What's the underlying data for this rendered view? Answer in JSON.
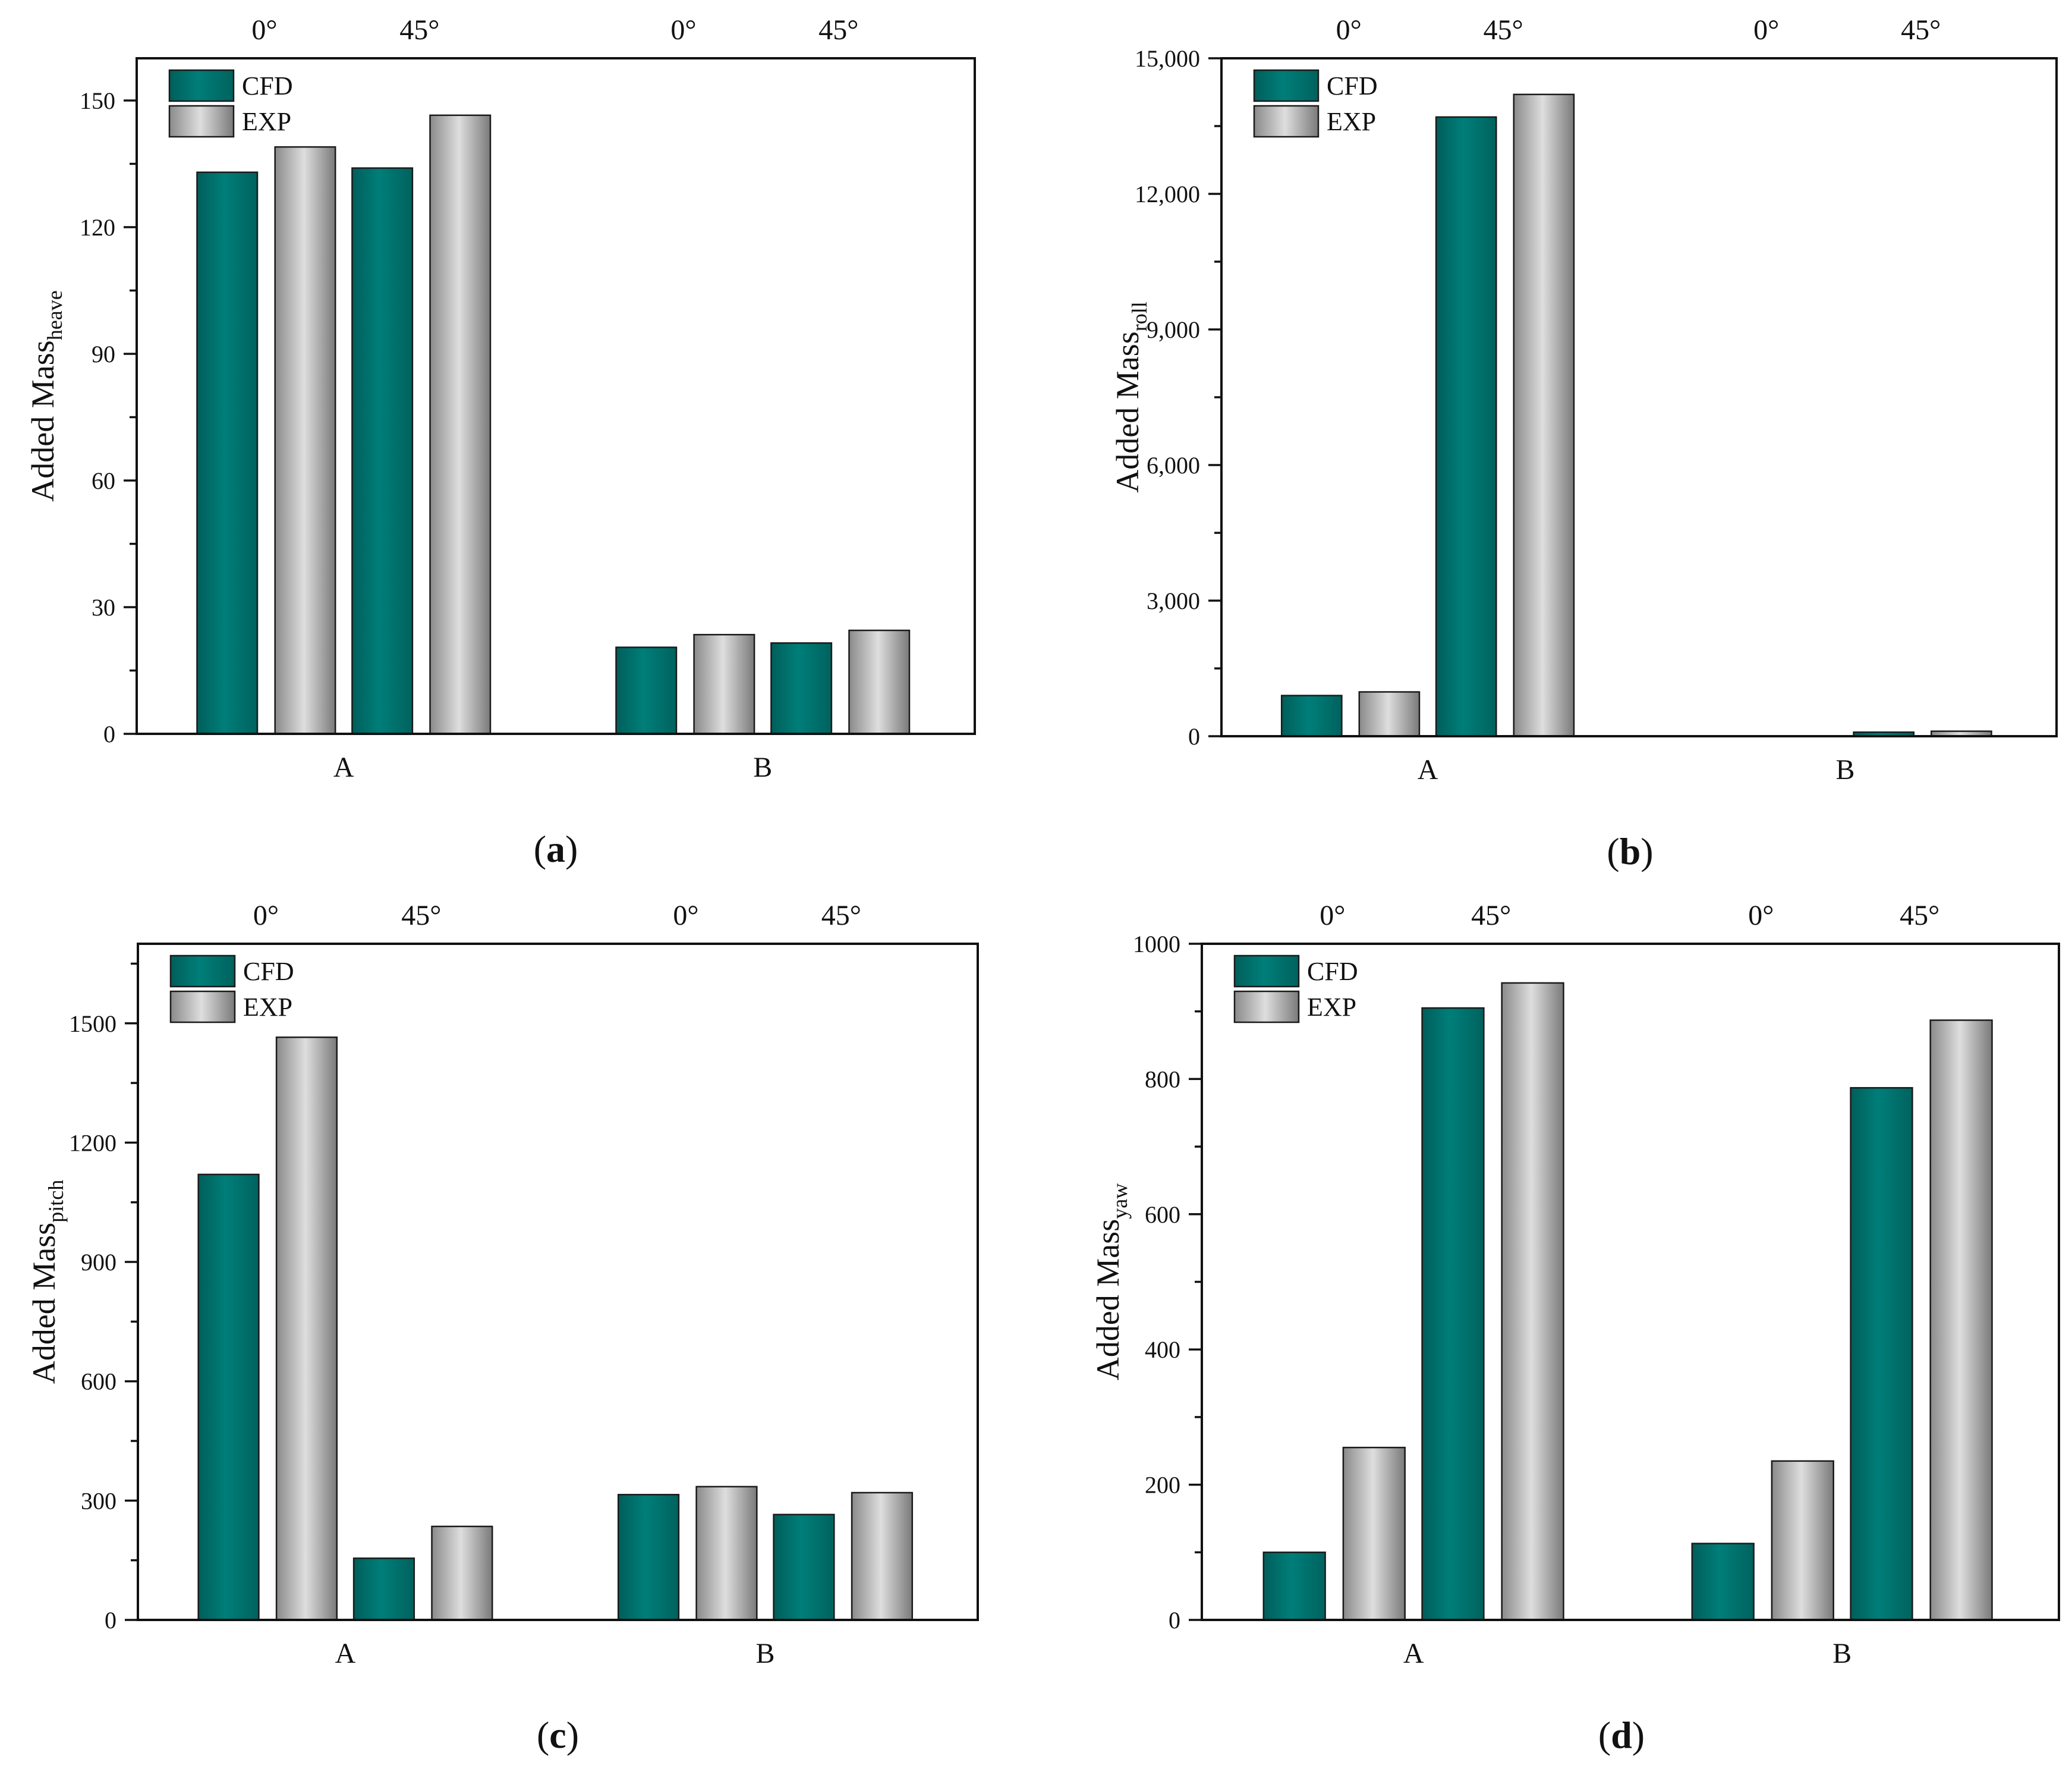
{
  "colors": {
    "cfd_fill": "#007b76",
    "exp_mid": "#d6d6d6",
    "exp_edge": "#858585",
    "frame": "#111111"
  },
  "chart_data": [
    {
      "type": "bar",
      "panel_label": "(a)",
      "ylabel_main": "Added Mass",
      "ylabel_sub": "heave",
      "ylim": [
        0,
        160
      ],
      "yticks": [
        0,
        30,
        60,
        90,
        120,
        150
      ],
      "ytick_labels": [
        "0",
        "30",
        "60",
        "90",
        "120",
        "150"
      ],
      "categories": [
        "A",
        "B"
      ],
      "angles": [
        "0°",
        "45°"
      ],
      "legend": [
        "CFD",
        "EXP"
      ],
      "series": [
        {
          "name": "CFD",
          "values": [
            [
              133,
              134
            ],
            [
              20.5,
              21.5
            ]
          ]
        },
        {
          "name": "EXP",
          "values": [
            [
              139,
              146.5
            ],
            [
              23.5,
              24.5
            ]
          ]
        }
      ]
    },
    {
      "type": "bar",
      "panel_label": "(b)",
      "ylabel_main": "Added Mass",
      "ylabel_sub": "roll",
      "ylim": [
        0,
        15000
      ],
      "yticks": [
        0,
        3000,
        6000,
        9000,
        12000,
        15000
      ],
      "ytick_labels": [
        "0",
        "3,000",
        "6,000",
        "9,000",
        "12,000",
        "15,000"
      ],
      "categories": [
        "A",
        "B"
      ],
      "angles": [
        "0°",
        "45°"
      ],
      "legend": [
        "CFD",
        "EXP"
      ],
      "series": [
        {
          "name": "CFD",
          "values": [
            [
              900,
              13700
            ],
            [
              5,
              90
            ]
          ]
        },
        {
          "name": "EXP",
          "values": [
            [
              980,
              14200
            ],
            [
              5,
              110
            ]
          ]
        }
      ]
    },
    {
      "type": "bar",
      "panel_label": "(c)",
      "ylabel_main": "Added Mass",
      "ylabel_sub": "pitch",
      "ylim": [
        0,
        1700
      ],
      "yticks": [
        0,
        300,
        600,
        900,
        1200,
        1500
      ],
      "ytick_labels": [
        "0",
        "300",
        "600",
        "900",
        "1200",
        "1500"
      ],
      "categories": [
        "A",
        "B"
      ],
      "angles": [
        "0°",
        "45°"
      ],
      "legend": [
        "CFD",
        "EXP"
      ],
      "series": [
        {
          "name": "CFD",
          "values": [
            [
              1120,
              155
            ],
            [
              315,
              265
            ]
          ]
        },
        {
          "name": "EXP",
          "values": [
            [
              1465,
              235
            ],
            [
              335,
              320
            ]
          ]
        }
      ]
    },
    {
      "type": "bar",
      "panel_label": "(d)",
      "ylabel_main": "Added Mass",
      "ylabel_sub": "yaw",
      "ylim": [
        0,
        1000
      ],
      "yticks": [
        0,
        200,
        400,
        600,
        800,
        1000
      ],
      "ytick_labels": [
        "0",
        "200",
        "400",
        "600",
        "800",
        "1000"
      ],
      "categories": [
        "A",
        "B"
      ],
      "angles": [
        "0°",
        "45°"
      ],
      "legend": [
        "CFD",
        "EXP"
      ],
      "series": [
        {
          "name": "CFD",
          "values": [
            [
              100,
              905
            ],
            [
              113,
              787
            ]
          ]
        },
        {
          "name": "EXP",
          "values": [
            [
              255,
              942
            ],
            [
              235,
              887
            ]
          ]
        }
      ]
    }
  ]
}
